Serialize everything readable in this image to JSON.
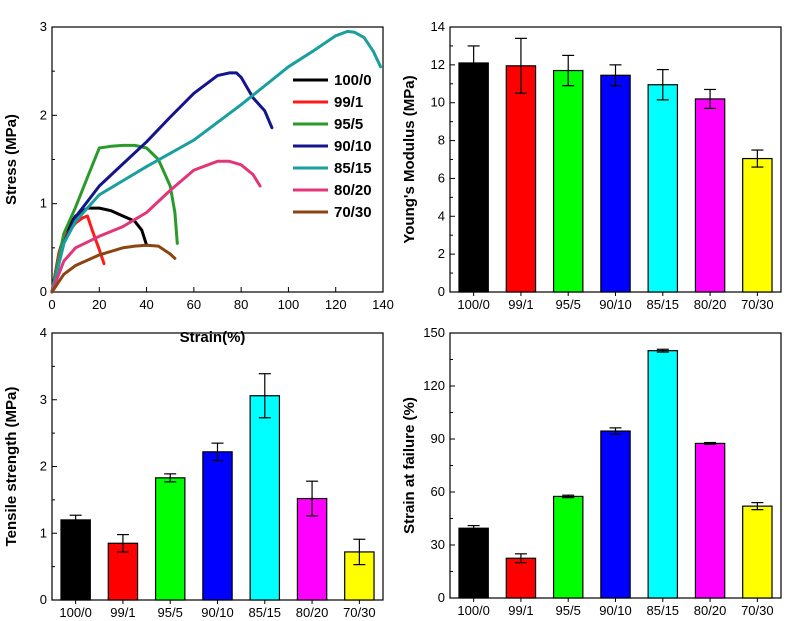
{
  "colors": {
    "100/0": "#000000",
    "99/1": "#ff0000",
    "95/5": "#00ff00",
    "90/10": "#0000ff",
    "85/15": "#00ffff",
    "80/20": "#ff00ff",
    "70/30": "#ffff00"
  },
  "line_colors": {
    "100/0": "#000000",
    "99/1": "#ff1a1a",
    "95/5": "#2a9a2a",
    "90/10": "#14148c",
    "85/15": "#1a9e9e",
    "80/20": "#e2367a",
    "70/30": "#8b4513"
  },
  "chart_data": [
    {
      "type": "line",
      "xlabel": "Strain(%)",
      "ylabel": "Stress (MPa)",
      "xlim": [
        0,
        140
      ],
      "ylim": [
        0,
        3
      ],
      "xticks": [
        "0",
        "20",
        "40",
        "60",
        "80",
        "100",
        "120",
        "140"
      ],
      "yticks": [
        "0",
        "1",
        "2",
        "3"
      ],
      "legend_position": "right",
      "series": [
        {
          "name": "100/0",
          "x": [
            0,
            3,
            6,
            10,
            15,
            20,
            25,
            30,
            35,
            38,
            40
          ],
          "y": [
            0,
            0.45,
            0.7,
            0.86,
            0.95,
            0.95,
            0.92,
            0.86,
            0.8,
            0.7,
            0.53
          ]
        },
        {
          "name": "99/1",
          "x": [
            0,
            3,
            6,
            10,
            13,
            15,
            17,
            20,
            22
          ],
          "y": [
            0,
            0.45,
            0.65,
            0.78,
            0.84,
            0.86,
            0.7,
            0.48,
            0.32
          ]
        },
        {
          "name": "95/5",
          "x": [
            0,
            5,
            10,
            15,
            20,
            25,
            30,
            35,
            40,
            45,
            50,
            52,
            53
          ],
          "y": [
            0,
            0.66,
            0.96,
            1.3,
            1.63,
            1.65,
            1.66,
            1.66,
            1.63,
            1.5,
            1.2,
            0.9,
            0.55
          ]
        },
        {
          "name": "90/10",
          "x": [
            0,
            5,
            10,
            20,
            30,
            40,
            50,
            60,
            70,
            75,
            78,
            80,
            85,
            90,
            93
          ],
          "y": [
            0,
            0.55,
            0.85,
            1.2,
            1.45,
            1.7,
            1.98,
            2.25,
            2.45,
            2.48,
            2.48,
            2.43,
            2.2,
            2.05,
            1.86
          ]
        },
        {
          "name": "85/15",
          "x": [
            0,
            5,
            10,
            20,
            40,
            60,
            80,
            100,
            110,
            120,
            125,
            128,
            132,
            136,
            139
          ],
          "y": [
            0,
            0.55,
            0.8,
            1.1,
            1.42,
            1.72,
            2.12,
            2.55,
            2.72,
            2.9,
            2.95,
            2.94,
            2.88,
            2.72,
            2.55
          ]
        },
        {
          "name": "80/20",
          "x": [
            0,
            5,
            10,
            20,
            30,
            40,
            50,
            60,
            70,
            75,
            80,
            85,
            88
          ],
          "y": [
            0,
            0.35,
            0.5,
            0.63,
            0.74,
            0.9,
            1.15,
            1.38,
            1.48,
            1.48,
            1.44,
            1.33,
            1.2
          ]
        },
        {
          "name": "70/30",
          "x": [
            0,
            5,
            10,
            20,
            30,
            35,
            40,
            45,
            50,
            52
          ],
          "y": [
            0,
            0.2,
            0.3,
            0.42,
            0.5,
            0.52,
            0.53,
            0.52,
            0.43,
            0.38
          ]
        }
      ]
    },
    {
      "type": "bar",
      "xlabel": "",
      "ylabel": "Young's Modulus (MPa)",
      "ylim": [
        0,
        14
      ],
      "yticks": [
        "0",
        "2",
        "4",
        "6",
        "8",
        "10",
        "12",
        "14"
      ],
      "categories": [
        "100/0",
        "99/1",
        "95/5",
        "90/10",
        "85/15",
        "80/20",
        "70/30"
      ],
      "values": [
        12.1,
        11.95,
        11.7,
        11.45,
        10.95,
        10.2,
        7.05
      ],
      "errors": [
        0.9,
        1.45,
        0.8,
        0.55,
        0.8,
        0.5,
        0.45
      ]
    },
    {
      "type": "bar",
      "xlabel": "",
      "ylabel": "Tensile strength (MPa)",
      "ylim": [
        0,
        4
      ],
      "yticks": [
        "0",
        "1",
        "2",
        "3",
        "4"
      ],
      "categories": [
        "100/0",
        "99/1",
        "95/5",
        "90/10",
        "85/15",
        "80/20",
        "70/30"
      ],
      "values": [
        1.2,
        0.85,
        1.83,
        2.22,
        3.06,
        1.52,
        0.72
      ],
      "errors": [
        0.07,
        0.13,
        0.06,
        0.13,
        0.33,
        0.26,
        0.19
      ]
    },
    {
      "type": "bar",
      "xlabel": "",
      "ylabel": "Strain at failure (%)",
      "ylim": [
        0,
        150
      ],
      "yticks": [
        "0",
        "30",
        "60",
        "90",
        "120",
        "150"
      ],
      "categories": [
        "100/0",
        "99/1",
        "95/5",
        "90/10",
        "85/15",
        "80/20",
        "70/30"
      ],
      "values": [
        39.5,
        22.5,
        57.5,
        94.5,
        140,
        87.5,
        52
      ],
      "errors": [
        1.5,
        2.5,
        0.7,
        1.8,
        0.8,
        0.5,
        2.0
      ]
    }
  ]
}
